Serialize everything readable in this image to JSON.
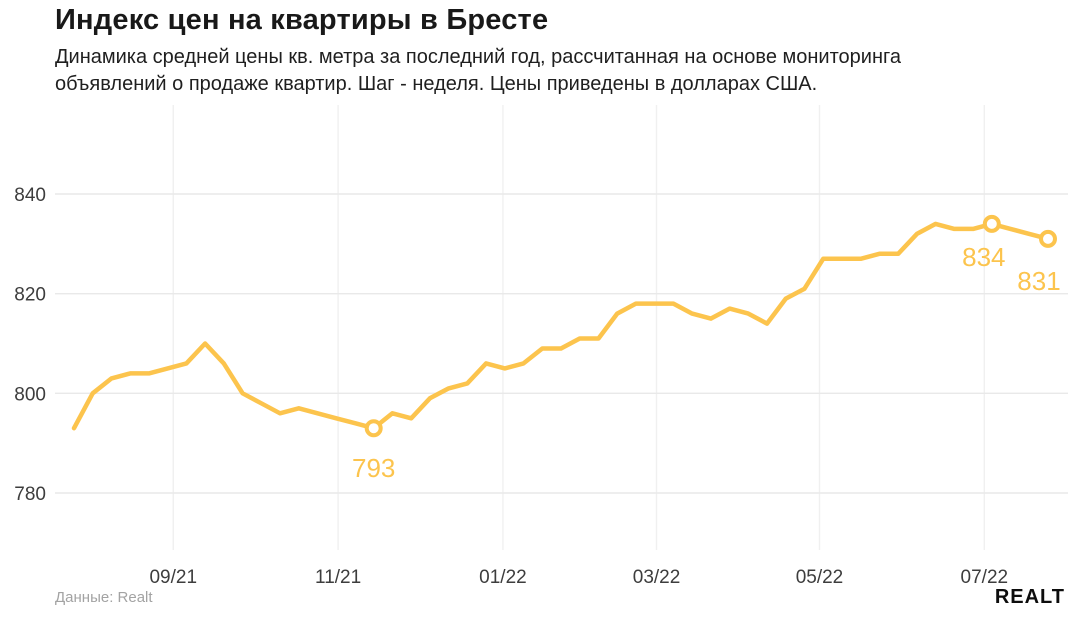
{
  "header": {
    "title": "Индекс цен на квартиры в Бресте",
    "subtitle_line1": "Динамика средней цены кв. метра за последний год, рассчитанная на основе мониторинга",
    "subtitle_line2": "объявлений о продаже квартир. Шаг - неделя. Цены приведены в долларах США."
  },
  "chart_data": {
    "type": "line",
    "title": "Индекс цен на квартиры в Бресте",
    "xlabel": "",
    "ylabel": "",
    "grid": "both",
    "legend": "none",
    "ylim": [
      775,
      848
    ],
    "y_ticks": [
      840,
      820,
      800,
      780
    ],
    "x_ticks": [
      {
        "label": "09/21",
        "week_index": 5.3
      },
      {
        "label": "11/21",
        "week_index": 14.1
      },
      {
        "label": "01/22",
        "week_index": 22.9
      },
      {
        "label": "03/22",
        "week_index": 31.1
      },
      {
        "label": "05/22",
        "week_index": 39.8
      },
      {
        "label": "07/22",
        "week_index": 48.6
      }
    ],
    "values": [
      793,
      800,
      803,
      804,
      804,
      805,
      806,
      810,
      806,
      800,
      798,
      796,
      797,
      796,
      795,
      794,
      793,
      796,
      795,
      799,
      801,
      802,
      806,
      805,
      806,
      809,
      809,
      811,
      811,
      816,
      818,
      818,
      818,
      816,
      815,
      817,
      816,
      814,
      819,
      821,
      827,
      827,
      827,
      828,
      828,
      832,
      834,
      833,
      833,
      834,
      833,
      832,
      831
    ],
    "annotations": [
      {
        "index": 16,
        "label": "793"
      },
      {
        "index": 49,
        "label": "834"
      },
      {
        "index": 52,
        "label": "831"
      }
    ]
  },
  "footer": {
    "source": "Данные: Realt",
    "logo": "Realt"
  },
  "colors": {
    "line": "#fcc44d",
    "label": "#fcc44d",
    "marker_fill": "#ffffff",
    "grid_horizontal": "#e9e9e9",
    "grid_vertical": "#f0f0f0",
    "tick_text": "#3d3d3d",
    "title_text": "#191919",
    "muted_text": "#a3a3a3"
  }
}
